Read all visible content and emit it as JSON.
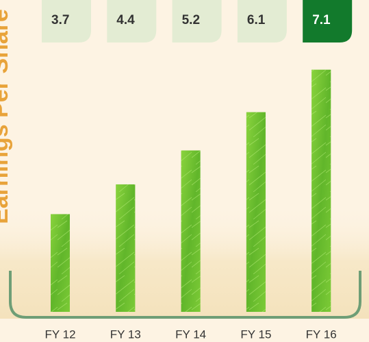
{
  "chart_data": {
    "type": "bar",
    "y_axis_label": "Earnings Per Share",
    "categories": [
      "FY 12",
      "FY 13",
      "FY 14",
      "FY 15",
      "FY 16"
    ],
    "values": [
      3.7,
      4.4,
      5.2,
      6.1,
      7.1
    ],
    "color": "#6cc12e",
    "label_box_colors": [
      "#e3ecd3",
      "#e3ecd3",
      "#e3ecd3",
      "#e3ecd3",
      "#127a2c"
    ],
    "label_text_colors": [
      "#333333",
      "#333333",
      "#333333",
      "#333333",
      "#ffffff"
    ],
    "ylim": [
      1.4,
      8
    ]
  }
}
